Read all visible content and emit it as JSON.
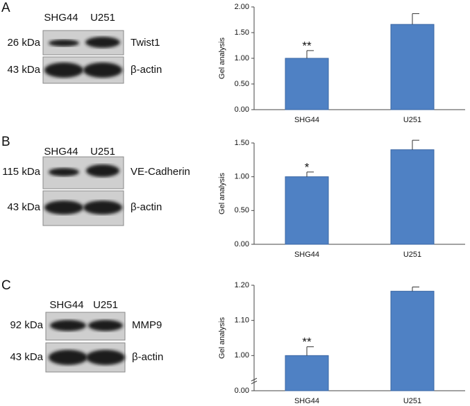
{
  "panels": [
    {
      "letter": "A",
      "lanes": [
        "SHG44",
        "U251"
      ],
      "rows": [
        {
          "size": "26 kDa",
          "protein": "Twist1"
        },
        {
          "size": "43 kDa",
          "protein": "β-actin"
        }
      ]
    },
    {
      "letter": "B",
      "lanes": [
        "SHG44",
        "U251"
      ],
      "rows": [
        {
          "size": "115 kDa",
          "protein": "VE-Cadherin"
        },
        {
          "size": "43 kDa",
          "protein": "β-actin"
        }
      ]
    },
    {
      "letter": "C",
      "lanes": [
        "SHG44",
        "U251"
      ],
      "rows": [
        {
          "size": "92 kDa",
          "protein": "MMP9"
        },
        {
          "size": "43 kDa",
          "protein": "β-actin"
        }
      ]
    }
  ],
  "chart_data": [
    {
      "type": "bar",
      "y_label": "Gel analysis",
      "categories": [
        "SHG44",
        "U251"
      ],
      "values": [
        1.0,
        1.66
      ],
      "errors": [
        0.15,
        0.21
      ],
      "annotations": [
        "**",
        null
      ],
      "color": "#4f81c4",
      "ylim": [
        0,
        2
      ],
      "yticks": [
        {
          "value": 0,
          "label": "0.00"
        },
        {
          "value": 0.5,
          "label": "0.50"
        },
        {
          "value": 1,
          "label": "1.00"
        },
        {
          "value": 1.5,
          "label": "1.50"
        },
        {
          "value": 2,
          "label": "2.00"
        }
      ]
    },
    {
      "type": "bar",
      "y_label": "Gel analysis",
      "categories": [
        "SHG44",
        "U251"
      ],
      "values": [
        1.0,
        1.4
      ],
      "errors": [
        0.07,
        0.14
      ],
      "annotations": [
        "*",
        null
      ],
      "color": "#4f81c4",
      "ylim": [
        0,
        1.5
      ],
      "yticks": [
        {
          "value": 0,
          "label": "0.00"
        },
        {
          "value": 0.5,
          "label": "0.50"
        },
        {
          "value": 1,
          "label": "1.00"
        },
        {
          "value": 1.5,
          "label": "1.50"
        }
      ]
    },
    {
      "type": "bar",
      "y_label": "Gel analysis",
      "categories": [
        "SHG44",
        "U251"
      ],
      "values": [
        1.0,
        1.183
      ],
      "errors": [
        0.025,
        0.012
      ],
      "annotations": [
        "**",
        null
      ],
      "color": "#4f81c4",
      "ylim": [
        0.9,
        1.2
      ],
      "axis_break": true,
      "yticks": [
        {
          "value": 0,
          "label": "0.00"
        },
        {
          "value": 1,
          "label": "1.00"
        },
        {
          "value": 1.1,
          "label": "1.10"
        },
        {
          "value": 1.2,
          "label": "1.20"
        }
      ]
    }
  ]
}
